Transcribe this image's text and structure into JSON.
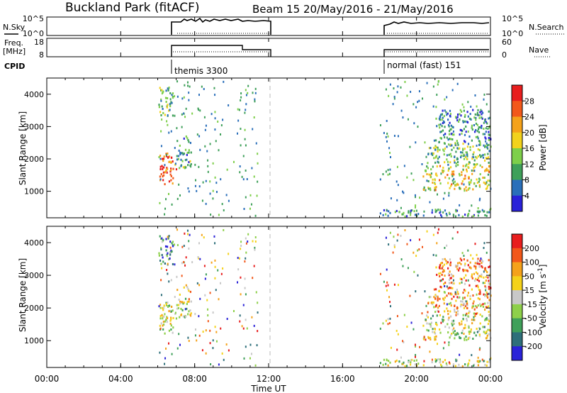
{
  "header": {
    "title": "Buckland Park (fitACF)",
    "beam_info": "Beam 15 20/May/2016 - 21/May/2016"
  },
  "noise_panel": {
    "left_label": "N.Sky",
    "left_ticks": [
      "10^5",
      "10^0"
    ],
    "right_ticks": [
      "10^5",
      "10^0"
    ],
    "right_label": "N.Search"
  },
  "freq_panel": {
    "left_label_line1": "Freq.",
    "left_label_line2": "[MHz]",
    "left_ticks": [
      "18",
      "8"
    ],
    "right_ticks": [
      "60",
      "0"
    ],
    "right_label": "Nave"
  },
  "cpid": {
    "label": "CPID",
    "segments": [
      {
        "label": "themis 3300",
        "start_hour": 6.0
      },
      {
        "label": "normal (fast) 151",
        "start_hour": 18.0
      }
    ]
  },
  "power_panel": {
    "ylabel": "Slant Range [km]",
    "yticks": [
      "4000",
      "3000",
      "2000",
      "1000"
    ],
    "colorbar_label": "Power [dB]",
    "colorbar_ticks": [
      "28",
      "24",
      "20",
      "16",
      "12",
      "8",
      "4"
    ],
    "colors": [
      "#2a22d8",
      "#2a6fba",
      "#3fa05a",
      "#7ecf4a",
      "#f2d21d",
      "#f5a21a",
      "#f2581a",
      "#e81e1e"
    ]
  },
  "velocity_panel": {
    "ylabel": "Slant Range [km]",
    "yticks": [
      "4000",
      "3000",
      "2000",
      "1000"
    ],
    "colorbar_label": "Velocity [m s^-1]",
    "colorbar_ticks": [
      "200",
      "100",
      "50",
      "15",
      "-15",
      "-50",
      "-100",
      "-200"
    ],
    "colors": [
      "#2a22d8",
      "#2e6f7a",
      "#3fa05a",
      "#8ed04a",
      "#c8c8c8",
      "#f5d21a",
      "#f5a21a",
      "#f2581a",
      "#e81e1e"
    ]
  },
  "xaxis": {
    "ticks": [
      "00:00",
      "04:00",
      "08:00",
      "12:00",
      "16:00",
      "20:00",
      "00:00"
    ],
    "label": "Time UT"
  },
  "chart_data": {
    "type": "heatmap",
    "title": "Buckland Park (fitACF)",
    "xlabel": "Time UT",
    "ylabel": "Slant Range [km]",
    "xlim_hours": [
      0,
      24
    ],
    "ylim_km": [
      180,
      4500
    ],
    "panels": [
      "N.Sky / N.Search",
      "Freq. / Nave",
      "Power [dB]",
      "Velocity [m s^-1]"
    ],
    "power_range_db": [
      0,
      32
    ],
    "velocity_range": [
      -250,
      250
    ],
    "observation_windows_hours": [
      [
        6.0,
        11.5
      ],
      [
        18.0,
        24.0
      ]
    ],
    "freq_mhz_by_segment": [
      {
        "start": 6.0,
        "end": 10.0,
        "value": 13
      },
      {
        "start": 10.0,
        "end": 11.5,
        "value": 10
      },
      {
        "start": 18.0,
        "end": 24.0,
        "value": 10
      }
    ],
    "nave_by_segment": [
      {
        "start": 6.0,
        "end": 10.0,
        "value": 25
      },
      {
        "start": 10.0,
        "end": 11.5,
        "value": 25
      },
      {
        "start": 18.0,
        "end": 24.0,
        "value": 25
      }
    ],
    "echo_regions": [
      {
        "t0": 6.0,
        "t1": 7.0,
        "r0": 1200,
        "r1": 2200,
        "power_db": 26,
        "velocity": -10
      },
      {
        "t0": 6.0,
        "t1": 6.8,
        "r0": 3300,
        "r1": 4200,
        "power_db": 12,
        "velocity": -150
      },
      {
        "t0": 7.0,
        "t1": 7.8,
        "r0": 1700,
        "r1": 2700,
        "power_db": 10,
        "velocity": 20
      },
      {
        "t0": 18.0,
        "t1": 24.0,
        "r0": 200,
        "r1": 420,
        "power_db": 8,
        "velocity": -15
      },
      {
        "t0": 20.3,
        "t1": 24.0,
        "r0": 1000,
        "r1": 1800,
        "power_db": 18,
        "velocity": -10
      },
      {
        "t0": 20.5,
        "t1": 24.0,
        "r0": 1800,
        "r1": 2500,
        "power_db": 12,
        "velocity": 80
      },
      {
        "t0": 21.0,
        "t1": 24.0,
        "r0": 2500,
        "r1": 3500,
        "power_db": 8,
        "velocity": 120
      }
    ]
  }
}
